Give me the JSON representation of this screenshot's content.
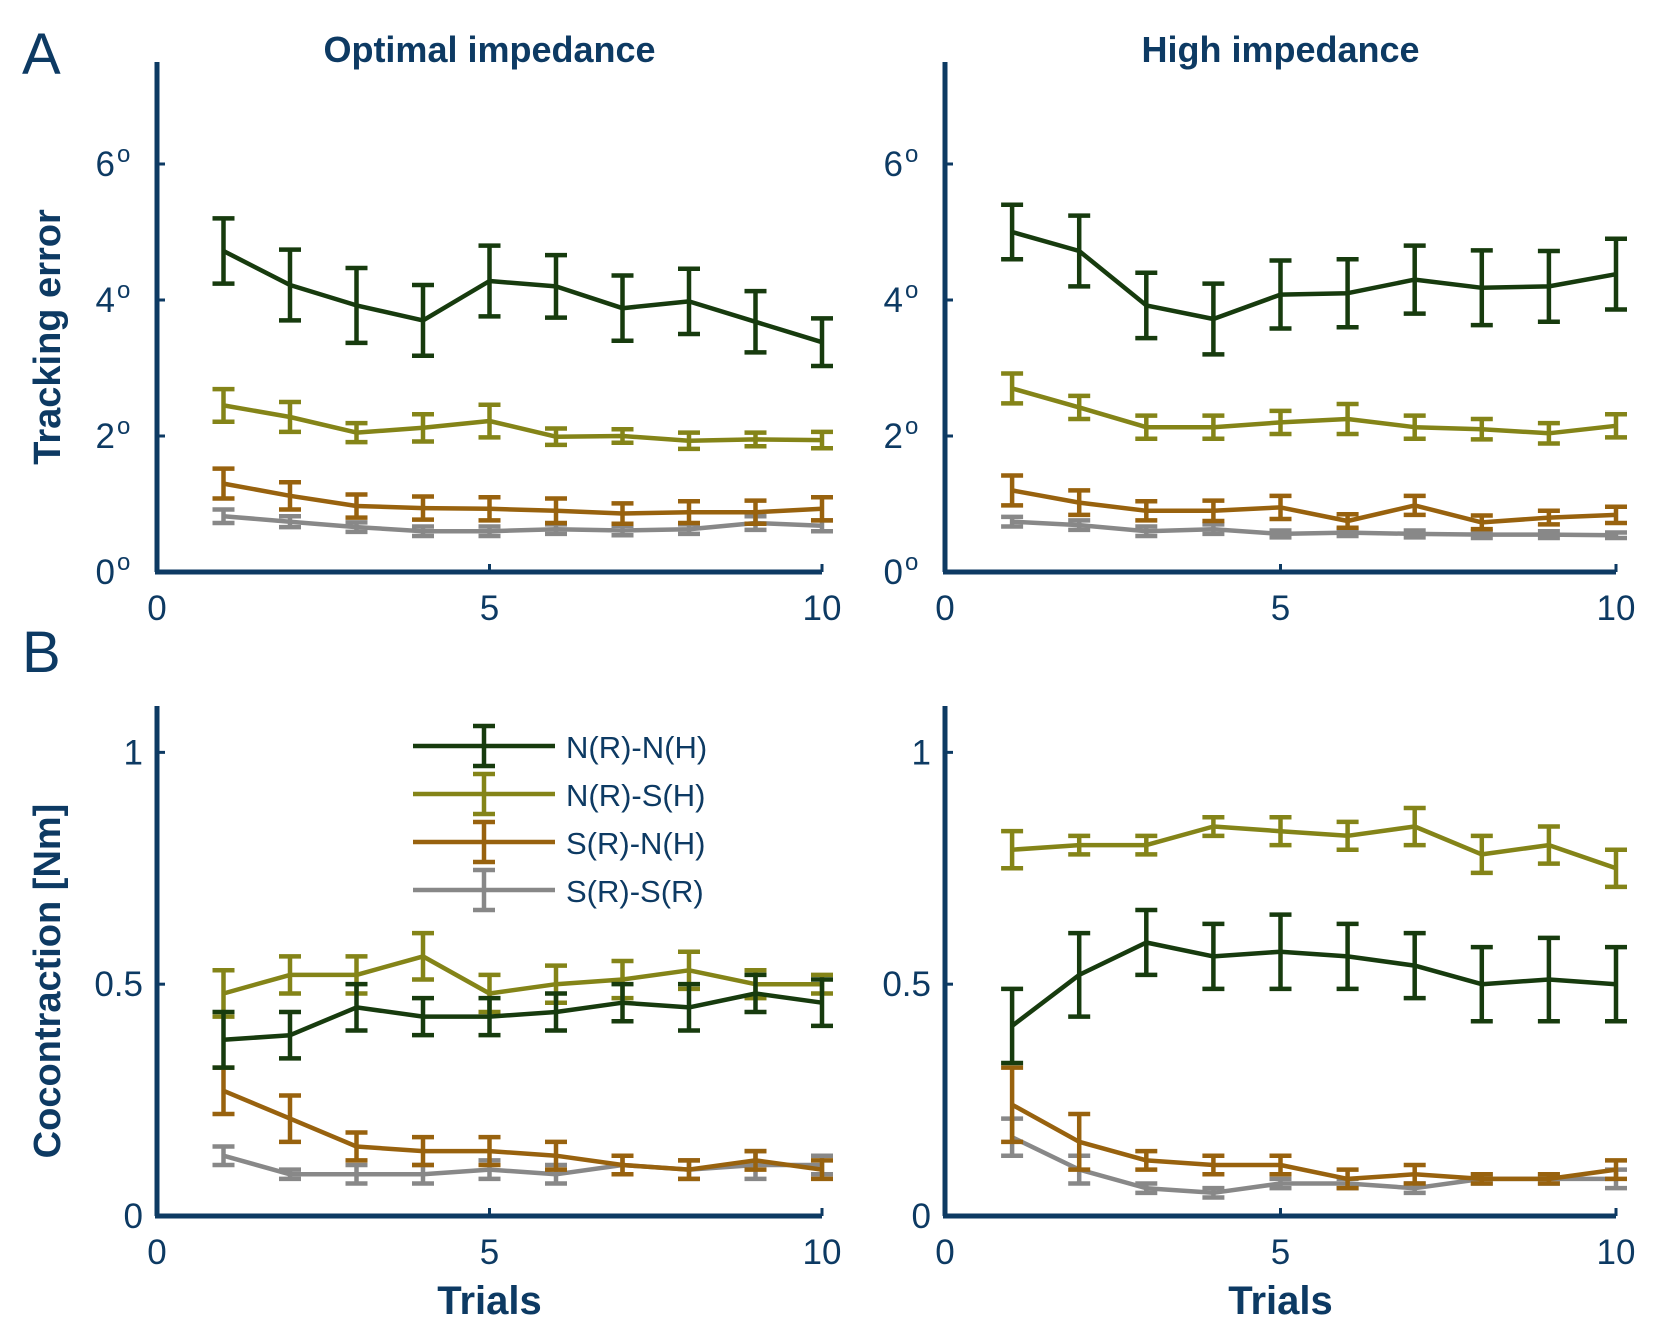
{
  "figure": {
    "panel_a_label": "A",
    "panel_b_label": "B",
    "axis_color": "#0d3a63",
    "degree_symbol": "o"
  },
  "legend": {
    "entries": [
      "N(R)-N(H)",
      "N(R)-S(H)",
      "S(R)-N(H)",
      "S(R)-S(R)"
    ]
  },
  "chart_data": [
    {
      "id": "a-optimal",
      "type": "line",
      "title": "Optimal impedance",
      "xlabel": "",
      "ylabel": "Tracking error",
      "xlim": [
        0,
        10
      ],
      "ylim": [
        0,
        7.5
      ],
      "xticks": [
        0,
        5,
        10
      ],
      "yticks": [
        0,
        2,
        4,
        6
      ],
      "ytick_labels": [
        "0",
        "2",
        "4",
        "6"
      ],
      "ytick_degree": true,
      "x": [
        1,
        2,
        3,
        4,
        5,
        6,
        7,
        8,
        9,
        10
      ],
      "series": [
        {
          "name": "N(R)-N(H)",
          "color": "#173b0e",
          "values": [
            4.72,
            4.22,
            3.92,
            3.7,
            4.28,
            4.2,
            3.88,
            3.98,
            3.68,
            3.38
          ],
          "errors": [
            0.48,
            0.52,
            0.55,
            0.52,
            0.52,
            0.46,
            0.48,
            0.48,
            0.45,
            0.35
          ]
        },
        {
          "name": "N(R)-S(H)",
          "color": "#848418",
          "values": [
            2.45,
            2.28,
            2.05,
            2.12,
            2.22,
            1.99,
            2.0,
            1.93,
            1.95,
            1.94
          ],
          "errors": [
            0.24,
            0.22,
            0.14,
            0.2,
            0.24,
            0.12,
            0.1,
            0.12,
            0.1,
            0.12
          ]
        },
        {
          "name": "S(R)-N(H)",
          "color": "#98620e",
          "values": [
            1.3,
            1.12,
            0.97,
            0.94,
            0.93,
            0.9,
            0.86,
            0.88,
            0.88,
            0.93
          ],
          "errors": [
            0.22,
            0.2,
            0.17,
            0.17,
            0.17,
            0.18,
            0.15,
            0.16,
            0.17,
            0.17
          ]
        },
        {
          "name": "S(R)-S(R)",
          "color": "#888888",
          "values": [
            0.82,
            0.74,
            0.66,
            0.6,
            0.6,
            0.63,
            0.61,
            0.63,
            0.72,
            0.68
          ],
          "errors": [
            0.1,
            0.08,
            0.07,
            0.07,
            0.07,
            0.07,
            0.07,
            0.07,
            0.1,
            0.08
          ]
        }
      ]
    },
    {
      "id": "a-high",
      "type": "line",
      "title": "High impedance",
      "xlabel": "",
      "ylabel": "",
      "xlim": [
        0,
        10
      ],
      "ylim": [
        0,
        7.5
      ],
      "xticks": [
        0,
        5,
        10
      ],
      "yticks": [
        0,
        2,
        4,
        6
      ],
      "ytick_labels": [
        "0",
        "2",
        "4",
        "6"
      ],
      "ytick_degree": true,
      "x": [
        1,
        2,
        3,
        4,
        5,
        6,
        7,
        8,
        9,
        10
      ],
      "series": [
        {
          "name": "N(R)-N(H)",
          "color": "#173b0e",
          "values": [
            5.0,
            4.72,
            3.92,
            3.72,
            4.08,
            4.1,
            4.3,
            4.18,
            4.2,
            4.38
          ],
          "errors": [
            0.4,
            0.52,
            0.48,
            0.52,
            0.5,
            0.5,
            0.5,
            0.55,
            0.52,
            0.52
          ]
        },
        {
          "name": "N(R)-S(H)",
          "color": "#848418",
          "values": [
            2.7,
            2.42,
            2.13,
            2.13,
            2.2,
            2.25,
            2.13,
            2.1,
            2.04,
            2.15
          ],
          "errors": [
            0.22,
            0.17,
            0.17,
            0.17,
            0.17,
            0.22,
            0.17,
            0.15,
            0.15,
            0.17
          ]
        },
        {
          "name": "S(R)-N(H)",
          "color": "#98620e",
          "values": [
            1.2,
            1.02,
            0.9,
            0.9,
            0.95,
            0.75,
            0.98,
            0.73,
            0.8,
            0.84
          ],
          "errors": [
            0.22,
            0.18,
            0.14,
            0.15,
            0.17,
            0.1,
            0.14,
            0.1,
            0.1,
            0.12
          ]
        },
        {
          "name": "S(R)-S(R)",
          "color": "#888888",
          "values": [
            0.74,
            0.69,
            0.6,
            0.63,
            0.56,
            0.58,
            0.56,
            0.55,
            0.55,
            0.54
          ],
          "errors": [
            0.07,
            0.07,
            0.07,
            0.07,
            0.05,
            0.05,
            0.05,
            0.05,
            0.05,
            0.04
          ]
        }
      ]
    },
    {
      "id": "b-optimal",
      "type": "line",
      "title": "",
      "xlabel": "Trials",
      "ylabel": "Cocontraction [Nm]",
      "xlim": [
        0,
        10
      ],
      "ylim": [
        0,
        1.1
      ],
      "xticks": [
        0,
        5,
        10
      ],
      "yticks": [
        0,
        0.5,
        1
      ],
      "ytick_labels": [
        "0",
        "0.5",
        "1"
      ],
      "ytick_degree": false,
      "x": [
        1,
        2,
        3,
        4,
        5,
        6,
        7,
        8,
        9,
        10
      ],
      "series": [
        {
          "name": "N(R)-N(H)",
          "color": "#173b0e",
          "values": [
            0.38,
            0.39,
            0.45,
            0.43,
            0.43,
            0.44,
            0.46,
            0.45,
            0.48,
            0.46
          ],
          "errors": [
            0.06,
            0.05,
            0.05,
            0.04,
            0.04,
            0.04,
            0.04,
            0.05,
            0.04,
            0.05
          ]
        },
        {
          "name": "N(R)-S(H)",
          "color": "#848418",
          "values": [
            0.48,
            0.52,
            0.52,
            0.56,
            0.48,
            0.5,
            0.51,
            0.53,
            0.5,
            0.5
          ],
          "errors": [
            0.05,
            0.04,
            0.04,
            0.05,
            0.04,
            0.04,
            0.04,
            0.04,
            0.03,
            0.02
          ]
        },
        {
          "name": "S(R)-N(H)",
          "color": "#98620e",
          "values": [
            0.27,
            0.21,
            0.15,
            0.14,
            0.14,
            0.13,
            0.11,
            0.1,
            0.12,
            0.1
          ],
          "errors": [
            0.05,
            0.05,
            0.03,
            0.03,
            0.03,
            0.03,
            0.02,
            0.02,
            0.02,
            0.02
          ]
        },
        {
          "name": "S(R)-S(R)",
          "color": "#888888",
          "values": [
            0.13,
            0.09,
            0.09,
            0.09,
            0.1,
            0.09,
            0.11,
            0.1,
            0.11,
            0.11
          ],
          "errors": [
            0.02,
            0.01,
            0.02,
            0.02,
            0.02,
            0.02,
            0.02,
            0.02,
            0.03,
            0.02
          ]
        }
      ]
    },
    {
      "id": "b-high",
      "type": "line",
      "title": "",
      "xlabel": "Trials",
      "ylabel": "",
      "xlim": [
        0,
        10
      ],
      "ylim": [
        0,
        1.1
      ],
      "xticks": [
        0,
        5,
        10
      ],
      "yticks": [
        0,
        0.5,
        1
      ],
      "ytick_labels": [
        "0",
        "0.5",
        "1"
      ],
      "ytick_degree": false,
      "x": [
        1,
        2,
        3,
        4,
        5,
        6,
        7,
        8,
        9,
        10
      ],
      "series": [
        {
          "name": "N(R)-N(H)",
          "color": "#173b0e",
          "values": [
            0.41,
            0.52,
            0.59,
            0.56,
            0.57,
            0.56,
            0.54,
            0.5,
            0.51,
            0.5
          ],
          "errors": [
            0.08,
            0.09,
            0.07,
            0.07,
            0.08,
            0.07,
            0.07,
            0.08,
            0.09,
            0.08
          ]
        },
        {
          "name": "N(R)-S(H)",
          "color": "#848418",
          "values": [
            0.79,
            0.8,
            0.8,
            0.84,
            0.83,
            0.82,
            0.84,
            0.78,
            0.8,
            0.75
          ],
          "errors": [
            0.04,
            0.02,
            0.02,
            0.02,
            0.03,
            0.03,
            0.04,
            0.04,
            0.04,
            0.04
          ]
        },
        {
          "name": "S(R)-N(H)",
          "color": "#98620e",
          "values": [
            0.24,
            0.16,
            0.12,
            0.11,
            0.11,
            0.08,
            0.09,
            0.08,
            0.08,
            0.1
          ],
          "errors": [
            0.08,
            0.06,
            0.02,
            0.02,
            0.02,
            0.02,
            0.02,
            0.01,
            0.01,
            0.02
          ]
        },
        {
          "name": "S(R)-S(R)",
          "color": "#888888",
          "values": [
            0.17,
            0.1,
            0.06,
            0.05,
            0.07,
            0.07,
            0.06,
            0.08,
            0.08,
            0.08
          ],
          "errors": [
            0.04,
            0.03,
            0.01,
            0.01,
            0.01,
            0.01,
            0.01,
            0.01,
            0.01,
            0.02
          ]
        }
      ]
    }
  ]
}
